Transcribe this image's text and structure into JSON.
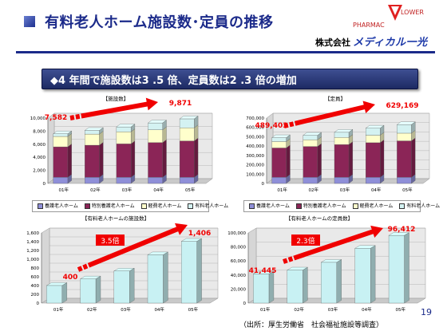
{
  "header": {
    "title": "有料老人ホーム施設数･定員の推移",
    "company_prefix": "株式会社",
    "company_brand": "メディカル一光",
    "logo_text_1": "PHARMAC",
    "logo_text_2": "LOWER"
  },
  "banner": {
    "text": "◆4 年間で施設数は3 .5 倍、定員数は2 .3 倍の増加"
  },
  "legend": {
    "items": [
      "養護老人ホーム",
      "特別養護老人ホーム",
      "軽費老人ホーム",
      "有料老人ホーム"
    ],
    "colors": [
      "#8f8fd8",
      "#8b2557",
      "#ffffcc",
      "#d4f2f2"
    ]
  },
  "source_note": "（出所：厚生労働省　社会福祉施設等調査）",
  "page_number": "19",
  "accent_arrow_color": "#f00000",
  "chart_data": [
    {
      "type": "bar",
      "stacked": true,
      "title": "【施設数】",
      "categories": [
        "01年",
        "02年",
        "03年",
        "04年",
        "05年"
      ],
      "series": [
        {
          "name": "養護老人ホーム",
          "values": [
            950,
            950,
            950,
            950,
            950
          ]
        },
        {
          "name": "特別養護老人ホーム",
          "values": [
            4650,
            4900,
            5100,
            5300,
            5550
          ]
        },
        {
          "name": "軽費老人ホーム",
          "values": [
            1590,
            1700,
            1850,
            1950,
            2000
          ]
        },
        {
          "name": "有料老人ホーム",
          "values": [
            392,
            550,
            740,
            1050,
            1371
          ]
        }
      ],
      "ylim": [
        0,
        10000
      ],
      "yticks": [
        "0",
        "2,000",
        "4,000",
        "6,000",
        "8,000",
        "10,000"
      ],
      "annotations": [
        {
          "text": "7,582",
          "at": "01年"
        },
        {
          "text": "9,871",
          "at": "05年"
        }
      ],
      "legend_position": "bottom"
    },
    {
      "type": "bar",
      "stacked": true,
      "title": "【定員】",
      "categories": [
        "01年",
        "02年",
        "03年",
        "04年",
        "05年"
      ],
      "series": [
        {
          "name": "養護老人ホーム",
          "values": [
            66000,
            66000,
            66000,
            66000,
            66000
          ]
        },
        {
          "name": "特別養護老人ホーム",
          "values": [
            314000,
            330000,
            350000,
            370000,
            390000
          ]
        },
        {
          "name": "軽費老人ホーム",
          "values": [
            68000,
            72000,
            76000,
            80000,
            82000
          ]
        },
        {
          "name": "有料老人ホーム",
          "values": [
            41403,
            47000,
            55000,
            75000,
            91169
          ]
        }
      ],
      "ylim": [
        0,
        700000
      ],
      "yticks": [
        "0",
        "100,000",
        "200,000",
        "300,000",
        "400,000",
        "500,000",
        "600,000",
        "700,000"
      ],
      "annotations": [
        {
          "text": "489,403",
          "at": "01年"
        },
        {
          "text": "629,169",
          "at": "05年"
        }
      ],
      "legend_position": "bottom"
    },
    {
      "type": "bar",
      "title": "【有料老人ホームの施設数】",
      "categories": [
        "01年",
        "02年",
        "03年",
        "04年",
        "05年"
      ],
      "values": [
        400,
        550,
        730,
        1100,
        1406
      ],
      "ylim": [
        0,
        1600
      ],
      "yticks": [
        "0",
        "200",
        "400",
        "600",
        "800",
        "1,000",
        "1,200",
        "1,400",
        "1,600"
      ],
      "annotations": [
        {
          "text": "400",
          "at": "01年"
        },
        {
          "text": "1,406",
          "at": "05年"
        },
        {
          "text": "3.5倍"
        }
      ]
    },
    {
      "type": "bar",
      "title": "【有料老人ホームの定員数】",
      "categories": [
        "01年",
        "02年",
        "03年",
        "04年",
        "05年"
      ],
      "values": [
        41445,
        47000,
        58000,
        78000,
        96412
      ],
      "ylim": [
        0,
        100000
      ],
      "yticks": [
        "0",
        "20,000",
        "40,000",
        "60,000",
        "80,000",
        "100,000"
      ],
      "annotations": [
        {
          "text": "41,445",
          "at": "01年"
        },
        {
          "text": "96,412",
          "at": "05年"
        },
        {
          "text": "2.3倍"
        }
      ]
    }
  ]
}
